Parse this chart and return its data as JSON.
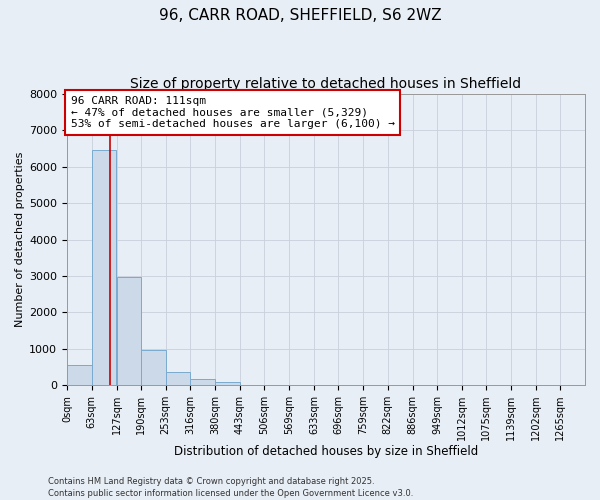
{
  "title_line1": "96, CARR ROAD, SHEFFIELD, S6 2WZ",
  "title_line2": "Size of property relative to detached houses in Sheffield",
  "xlabel": "Distribution of detached houses by size in Sheffield",
  "ylabel": "Number of detached properties",
  "bar_color": "#ccd9e8",
  "bar_edge_color": "#7aaad0",
  "bar_left_edges": [
    0,
    63,
    127,
    190,
    253,
    316,
    380,
    443,
    506,
    569,
    633,
    696,
    759,
    822,
    886,
    949,
    1012,
    1075,
    1139,
    1202
  ],
  "bar_heights": [
    560,
    6450,
    2980,
    970,
    360,
    160,
    80,
    0,
    0,
    0,
    0,
    0,
    0,
    0,
    0,
    0,
    0,
    0,
    0,
    0
  ],
  "bin_width": 63,
  "x_tick_labels": [
    "0sqm",
    "63sqm",
    "127sqm",
    "190sqm",
    "253sqm",
    "316sqm",
    "380sqm",
    "443sqm",
    "506sqm",
    "569sqm",
    "633sqm",
    "696sqm",
    "759sqm",
    "822sqm",
    "886sqm",
    "949sqm",
    "1012sqm",
    "1075sqm",
    "1139sqm",
    "1202sqm",
    "1265sqm"
  ],
  "x_tick_positions": [
    0,
    63,
    127,
    190,
    253,
    316,
    380,
    443,
    506,
    569,
    633,
    696,
    759,
    822,
    886,
    949,
    1012,
    1075,
    1139,
    1202,
    1265
  ],
  "ylim": [
    0,
    8000
  ],
  "yticks": [
    0,
    1000,
    2000,
    3000,
    4000,
    5000,
    6000,
    7000,
    8000
  ],
  "xlim_max": 1328,
  "vline_x": 111,
  "vline_color": "#cc0000",
  "annotation_title": "96 CARR ROAD: 111sqm",
  "annotation_line2": "← 47% of detached houses are smaller (5,329)",
  "annotation_line3": "53% of semi-detached houses are larger (6,100) →",
  "annotation_box_facecolor": "#ffffff",
  "annotation_box_edgecolor": "#cc0000",
  "grid_color": "#c8d0dc",
  "bg_color": "#e8eef6",
  "plot_bg_color": "#e8eef6",
  "footnote": "Contains HM Land Registry data © Crown copyright and database right 2025.\nContains public sector information licensed under the Open Government Licence v3.0.",
  "title1_fontsize": 11,
  "title2_fontsize": 10,
  "ylabel_fontsize": 8,
  "xlabel_fontsize": 8.5,
  "ytick_fontsize": 8,
  "xtick_fontsize": 7,
  "footnote_fontsize": 6
}
